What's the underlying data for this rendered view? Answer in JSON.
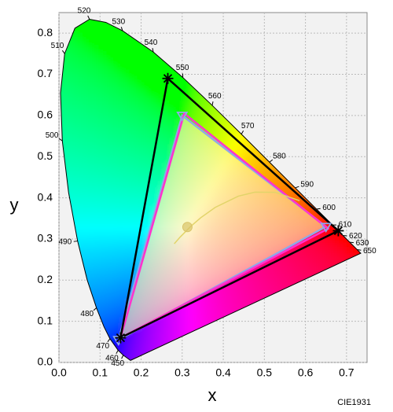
{
  "chart_data": {
    "type": "chromaticity",
    "xlabel": "x",
    "ylabel": "y",
    "caption": "CIE1931",
    "xlim": [
      0,
      0.75
    ],
    "ylim": [
      0,
      0.85
    ],
    "xticks": [
      {
        "value": 0,
        "label": "0.0"
      },
      0.1,
      0.2,
      0.3,
      0.4,
      0.5,
      0.6,
      0.7
    ],
    "yticks": [
      {
        "value": 0,
        "label": "0.0"
      },
      0.1,
      0.2,
      0.3,
      0.4,
      0.5,
      0.6,
      0.7,
      0.8
    ],
    "grid": true,
    "locus": {
      "wavelengths": [
        null,
        450,
        460,
        470,
        null,
        480,
        null,
        490,
        null,
        500,
        null,
        510,
        null,
        520,
        null,
        530,
        540,
        550,
        560,
        570,
        580,
        590,
        600,
        610,
        620,
        630,
        650,
        null
      ],
      "x": [
        0.1741,
        0.1566,
        0.144,
        0.1241,
        0.1096,
        0.0913,
        0.0687,
        0.0454,
        0.0235,
        0.0082,
        0.0039,
        0.0139,
        0.0389,
        0.0743,
        0.1142,
        0.1547,
        0.2296,
        0.3016,
        0.3731,
        0.4441,
        0.5125,
        0.5752,
        0.627,
        0.6658,
        0.6915,
        0.7079,
        0.726,
        0.7347
      ],
      "y": [
        0.005,
        0.0177,
        0.0297,
        0.0578,
        0.0868,
        0.1327,
        0.2007,
        0.295,
        0.4127,
        0.5384,
        0.6548,
        0.7502,
        0.812,
        0.8338,
        0.8262,
        0.8059,
        0.7543,
        0.6923,
        0.6245,
        0.5547,
        0.4866,
        0.4242,
        0.3725,
        0.334,
        0.3083,
        0.292,
        0.274,
        0.2653
      ]
    },
    "planckian": {
      "color": "#e2d46a",
      "x": [
        0.5857,
        0.5267,
        0.477,
        0.4369,
        0.3805,
        0.3451,
        0.3221,
        0.2952,
        0.2807
      ],
      "y": [
        0.3931,
        0.4133,
        0.4137,
        0.4041,
        0.3768,
        0.3516,
        0.3318,
        0.3048,
        0.2884
      ]
    },
    "white_point": {
      "x": 0.3127,
      "y": 0.329,
      "color": "#d9c46a"
    },
    "gamuts": [
      {
        "color": "#8fa8e8",
        "fill": "#fff7a8",
        "marker": "triangle",
        "x": [
          0.65,
          0.3,
          0.145
        ],
        "y": [
          0.33,
          0.6,
          0.055
        ]
      },
      {
        "color": "#ff33cc",
        "marker": "none",
        "x": [
          0.655,
          0.305,
          0.15
        ],
        "y": [
          0.325,
          0.605,
          0.06
        ]
      },
      {
        "color": "#000000",
        "marker": "star",
        "x": [
          0.68,
          0.265,
          0.15
        ],
        "y": [
          0.32,
          0.69,
          0.06
        ]
      }
    ]
  }
}
